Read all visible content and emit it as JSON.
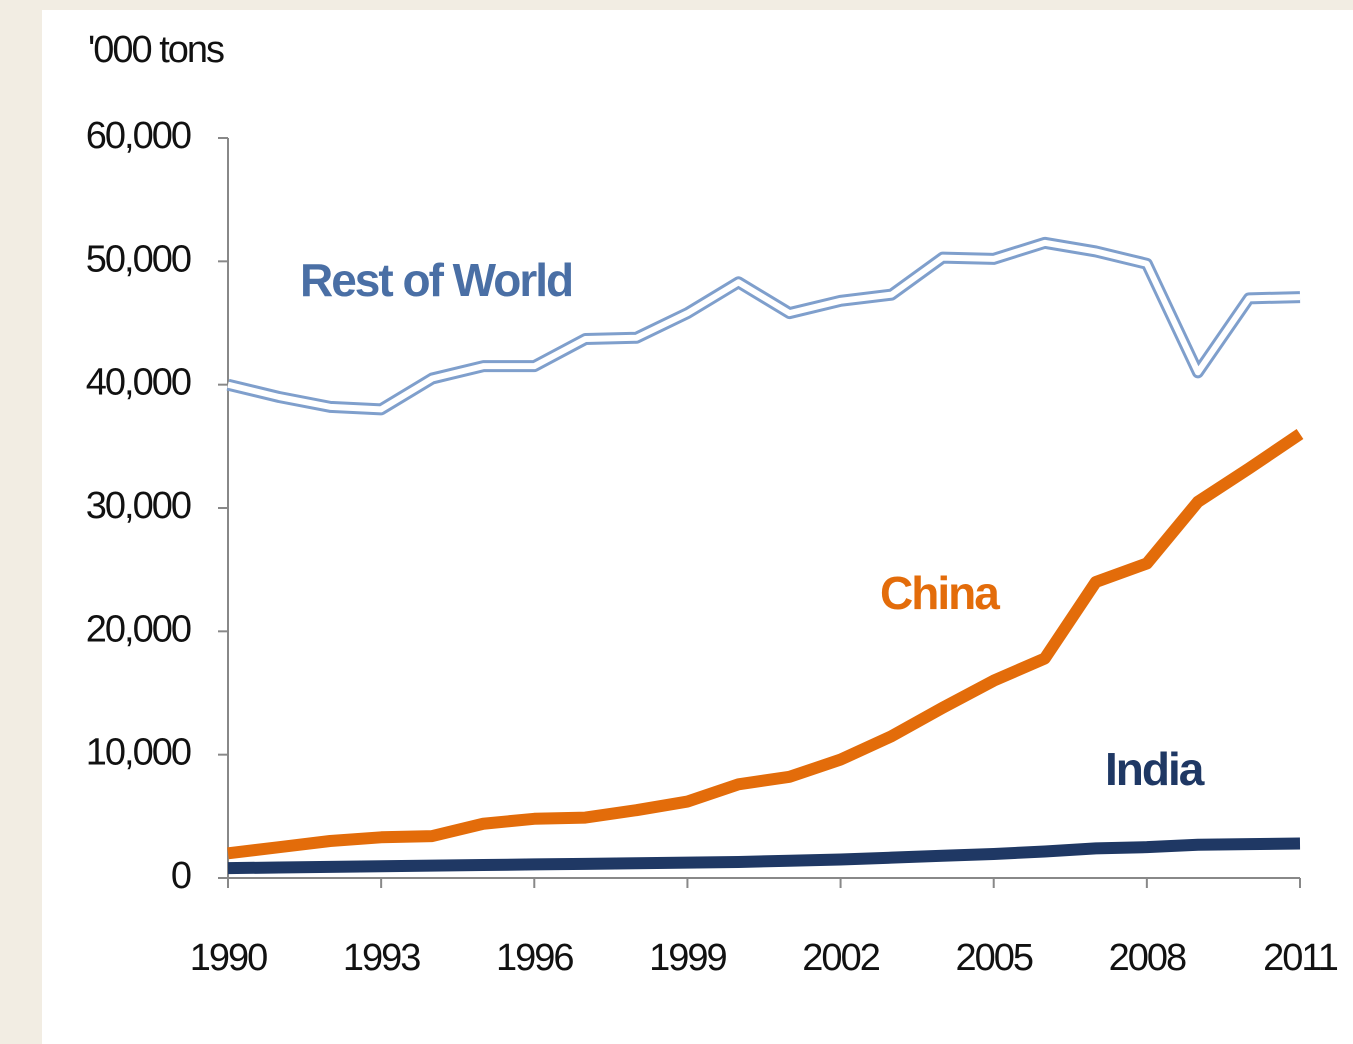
{
  "chart_data": {
    "type": "line",
    "y_axis_label": "'000 tons",
    "x": [
      1990,
      1991,
      1992,
      1993,
      1994,
      1995,
      1996,
      1997,
      1998,
      1999,
      2000,
      2001,
      2002,
      2003,
      2004,
      2005,
      2006,
      2007,
      2008,
      2009,
      2010,
      2011
    ],
    "series": [
      {
        "name": "Rest of World",
        "color": "#7f9fcc",
        "label_color": "#4a6fa5",
        "values": [
          40000,
          39000,
          38200,
          38000,
          40500,
          41500,
          41500,
          43700,
          43800,
          45800,
          48300,
          45800,
          46800,
          47300,
          50300,
          50200,
          51500,
          50800,
          49800,
          41000,
          47000,
          47100
        ]
      },
      {
        "name": "China",
        "color": "#e36c0a",
        "label_color": "#e36c0a",
        "values": [
          2000,
          2500,
          3000,
          3300,
          3400,
          4400,
          4800,
          4900,
          5500,
          6200,
          7600,
          8200,
          9600,
          11500,
          13800,
          16000,
          17800,
          24000,
          25500,
          30500,
          33200,
          36000
        ]
      },
      {
        "name": "India",
        "color": "#1f3864",
        "label_color": "#1f3864",
        "values": [
          800,
          850,
          900,
          950,
          1000,
          1050,
          1100,
          1150,
          1200,
          1250,
          1300,
          1400,
          1500,
          1650,
          1800,
          1950,
          2150,
          2400,
          2500,
          2700,
          2750,
          2800
        ]
      }
    ],
    "xlim": [
      1990,
      2011
    ],
    "xticks": [
      1990,
      1993,
      1996,
      1999,
      2002,
      2005,
      2008,
      2011
    ],
    "ylim": [
      0,
      60000
    ],
    "yticks": [
      0,
      {
        "value": 10000,
        "label": "10,000"
      },
      {
        "value": 20000,
        "label": "20,000"
      },
      {
        "value": 30000,
        "label": "30,000"
      },
      {
        "value": 40000,
        "label": "40,000"
      },
      {
        "value": 50000,
        "label": "50,000"
      },
      {
        "value": 60000,
        "label": "60,000"
      }
    ],
    "grid": false
  }
}
